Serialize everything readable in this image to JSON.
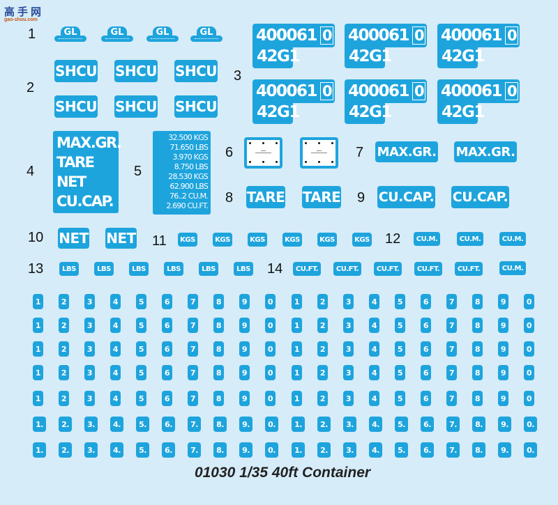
{
  "logo": {
    "text": "高手网",
    "sub": "gao-shou.com"
  },
  "labels": [
    "1",
    "2",
    "3",
    "4",
    "5",
    "6",
    "7",
    "8",
    "9",
    "10",
    "11",
    "12",
    "13",
    "14"
  ],
  "gl": "GL",
  "shcu": "SHCU",
  "container_number": {
    "serial": "400061",
    "check_digit": "0",
    "type_code": "42G1"
  },
  "block4": [
    "MAX.GR.",
    "TARE",
    "NET",
    "CU.CAP."
  ],
  "block5": [
    "32.500 KGS",
    "71.650 LBS",
    "3.970 KGS",
    "8.750 LBS",
    "28.530 KGS",
    "62.900 LBS",
    "76..2 CU.M.",
    "2.690 CU.FT."
  ],
  "max_gr": "MAX.GR.",
  "tare": "TARE",
  "cu_cap": "CU.CAP.",
  "net": "NET",
  "kgs": "KGS",
  "cum": "CU.M.",
  "lbs": "LBS",
  "cuft": "CU.FT.",
  "digits": [
    "1",
    "2",
    "3",
    "4",
    "5",
    "6",
    "7",
    "8",
    "9",
    "0",
    "1",
    "2",
    "3",
    "4",
    "5",
    "6",
    "7",
    "8",
    "9",
    "0"
  ],
  "digits_dot": [
    "1.",
    "2.",
    "3.",
    "4.",
    "5.",
    "6.",
    "7.",
    "8.",
    "9.",
    "0.",
    "1.",
    "2.",
    "3.",
    "4.",
    "5.",
    "6.",
    "7.",
    "8.",
    "9.",
    "0."
  ],
  "caption": "01030 1/35 40ft Container",
  "colors": {
    "background": "#d6ecf8",
    "decal": "#1ea4dd",
    "decal_text": "#ffffff"
  }
}
